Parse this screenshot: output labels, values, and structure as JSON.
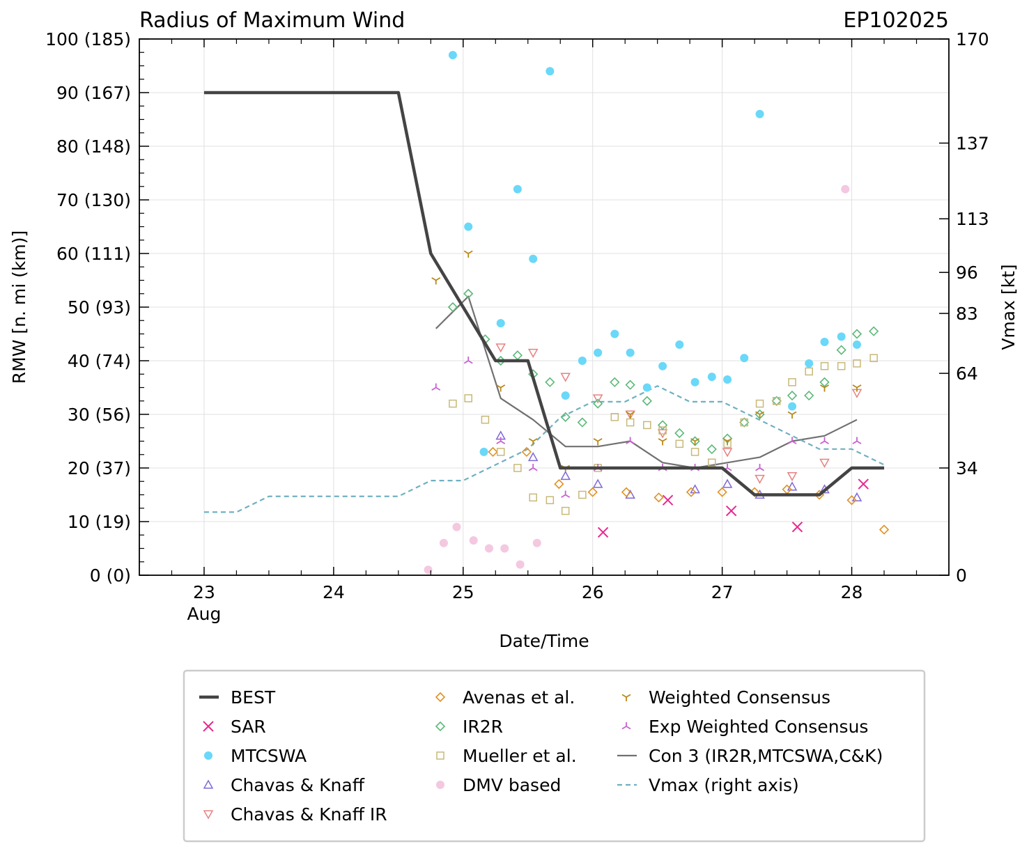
{
  "chart_data": {
    "type": "line",
    "title": "Radius of Maximum Wind",
    "storm_id": "EP102025",
    "xlabel": "Date/Time",
    "ylabel": "RMW [n. mi (km)]",
    "y2label": "Vmax [kt]",
    "xlim": [
      22.5,
      28.75
    ],
    "ylim": [
      0,
      100
    ],
    "x_ticks": [
      {
        "value": 23,
        "label": "23",
        "sublabel": "Aug"
      },
      {
        "value": 24,
        "label": "24",
        "sublabel": ""
      },
      {
        "value": 25,
        "label": "25",
        "sublabel": ""
      },
      {
        "value": 26,
        "label": "26",
        "sublabel": ""
      },
      {
        "value": 27,
        "label": "27",
        "sublabel": ""
      },
      {
        "value": 28,
        "label": "28",
        "sublabel": ""
      }
    ],
    "y_ticks": [
      {
        "value": 0,
        "label": "0 (0)"
      },
      {
        "value": 10,
        "label": "10 (19)"
      },
      {
        "value": 20,
        "label": "20 (37)"
      },
      {
        "value": 30,
        "label": "30 (56)"
      },
      {
        "value": 40,
        "label": "40 (74)"
      },
      {
        "value": 50,
        "label": "50 (93)"
      },
      {
        "value": 60,
        "label": "60 (111)"
      },
      {
        "value": 70,
        "label": "70 (130)"
      },
      {
        "value": 80,
        "label": "80 (148)"
      },
      {
        "value": 90,
        "label": "90 (167)"
      },
      {
        "value": 100,
        "label": "100 (185)"
      }
    ],
    "y2_ticks": [
      {
        "value": 0,
        "label": "0"
      },
      {
        "value": 34,
        "label": "34"
      },
      {
        "value": 64,
        "label": "64"
      },
      {
        "value": 83,
        "label": "83"
      },
      {
        "value": 96,
        "label": "96"
      },
      {
        "value": 113,
        "label": "113"
      },
      {
        "value": 137,
        "label": "137"
      },
      {
        "value": 170,
        "label": "170"
      }
    ],
    "y2lim": [
      0,
      170
    ],
    "grid": true,
    "legend_position": "below",
    "series": [
      {
        "name": "BEST",
        "kind": "line",
        "color": "#444444",
        "dash": "solid",
        "x": [
          23.0,
          24.5,
          24.75,
          25.0,
          25.25,
          25.5,
          25.75,
          26.0,
          26.25,
          26.5,
          26.75,
          27.0,
          27.25,
          27.5,
          27.75,
          28.0,
          28.25
        ],
        "y": [
          90,
          90,
          60,
          50,
          40,
          40,
          20,
          20,
          20,
          20,
          20,
          20,
          15,
          15,
          15,
          20,
          20
        ]
      },
      {
        "name": "SAR",
        "kind": "marker",
        "marker": "x",
        "color": "#e8288f",
        "x": [
          26.08,
          26.58,
          27.07,
          27.58,
          28.09
        ],
        "y": [
          8,
          14,
          12,
          9,
          17
        ]
      },
      {
        "name": "MTCSWA",
        "kind": "marker",
        "marker": "circle",
        "color": "#6ad8f8",
        "x": [
          24.92,
          25.04,
          25.16,
          25.29,
          25.42,
          25.54,
          25.67,
          25.79,
          25.92,
          26.04,
          26.17,
          26.29,
          26.42,
          26.54,
          26.67,
          26.79,
          26.92,
          27.04,
          27.17,
          27.29,
          27.54,
          27.67,
          27.79,
          27.92,
          28.04
        ],
        "y": [
          97,
          65,
          23,
          47,
          72,
          59,
          94,
          33.5,
          40,
          41.5,
          45,
          41.5,
          35,
          39,
          43,
          36,
          37,
          36.5,
          40.5,
          86,
          31.5,
          39.5,
          43.5,
          44.5,
          43
        ]
      },
      {
        "name": "Chavas & Knaff",
        "kind": "marker",
        "marker": "triangle-up",
        "color": "#7f68d8",
        "x": [
          25.29,
          25.54,
          25.79,
          26.04,
          26.29,
          26.79,
          27.04,
          27.29,
          27.54,
          27.79,
          28.04
        ],
        "y": [
          26,
          22,
          18.5,
          17,
          15,
          16,
          17,
          15,
          16.5,
          16,
          14.5
        ]
      },
      {
        "name": "Chavas & Knaff IR",
        "kind": "marker",
        "marker": "triangle-down",
        "color": "#e88080",
        "x": [
          25.29,
          25.54,
          25.79,
          26.04,
          26.29,
          26.54,
          27.04,
          27.29,
          27.54,
          27.79,
          28.04
        ],
        "y": [
          42.5,
          41.5,
          37,
          33,
          30,
          26.5,
          23,
          18,
          18.5,
          21,
          34
        ]
      },
      {
        "name": "Avenas et al.",
        "kind": "marker",
        "marker": "diamond",
        "color": "#e09020",
        "x": [
          25.23,
          25.49,
          25.74,
          26.0,
          26.26,
          26.51,
          26.76,
          27.0,
          27.25,
          27.5,
          27.75,
          28.0,
          28.25
        ],
        "y": [
          23,
          23,
          17,
          15.5,
          15.5,
          14.5,
          15.5,
          15.5,
          15.5,
          16,
          15,
          14,
          8.5
        ]
      },
      {
        "name": "IR2R",
        "kind": "marker",
        "marker": "diamond",
        "color": "#5cb878",
        "x": [
          24.92,
          25.04,
          25.17,
          25.29,
          25.42,
          25.54,
          25.67,
          25.79,
          25.92,
          26.04,
          26.17,
          26.29,
          26.42,
          26.54,
          26.67,
          26.79,
          26.92,
          27.04,
          27.17,
          27.29,
          27.42,
          27.54,
          27.67,
          27.79,
          27.92,
          28.04,
          28.17
        ],
        "y": [
          50,
          52.5,
          44,
          40,
          41,
          37.5,
          36,
          29.5,
          28.5,
          32,
          36,
          35.5,
          32.5,
          28,
          26.5,
          25,
          23.5,
          25.5,
          28.5,
          30,
          32.5,
          33.5,
          33.5,
          36,
          42,
          45,
          45.5
        ]
      },
      {
        "name": "Mueller et al.",
        "kind": "marker",
        "marker": "square",
        "color": "#c8b878",
        "x": [
          24.92,
          25.04,
          25.17,
          25.29,
          25.42,
          25.54,
          25.67,
          25.79,
          25.92,
          26.04,
          26.17,
          26.29,
          26.42,
          26.54,
          26.67,
          26.79,
          26.92,
          27.04,
          27.17,
          27.29,
          27.42,
          27.54,
          27.67,
          27.79,
          27.92,
          28.04,
          28.17
        ],
        "y": [
          32,
          33,
          29,
          23,
          20,
          14.5,
          14,
          12,
          15,
          20,
          29.5,
          28.5,
          28,
          27,
          24.5,
          23,
          21,
          24.5,
          28.5,
          32,
          32.5,
          36,
          38,
          39,
          39,
          39.5,
          40.5
        ]
      },
      {
        "name": "DMV based",
        "kind": "marker",
        "marker": "circle",
        "color": "#f4c8e0",
        "x": [
          24.73,
          24.85,
          24.95,
          25.08,
          25.2,
          25.32,
          25.44,
          25.57,
          27.95
        ],
        "y": [
          1,
          6,
          9,
          6.5,
          5,
          5,
          2,
          6,
          72
        ]
      },
      {
        "name": "Weighted Consensus",
        "kind": "marker",
        "marker": "tri-down",
        "color": "#b88818",
        "x": [
          24.79,
          25.04,
          25.29,
          25.54,
          25.79,
          26.04,
          26.29,
          26.54,
          26.79,
          27.04,
          27.29,
          27.54,
          27.79,
          28.04
        ],
        "y": [
          55,
          60,
          35,
          25,
          20,
          25,
          30,
          25,
          25,
          25,
          30,
          30,
          35,
          35
        ]
      },
      {
        "name": "Exp Weighted Consensus",
        "kind": "marker",
        "marker": "tri-up",
        "color": "#c860d0",
        "x": [
          24.79,
          25.04,
          25.29,
          25.54,
          25.79,
          26.04,
          26.29,
          26.54,
          26.79,
          27.04,
          27.29,
          27.54,
          27.79,
          28.04
        ],
        "y": [
          35,
          40,
          25,
          20,
          15,
          20,
          25,
          20,
          20,
          20,
          20,
          25,
          25,
          25
        ]
      },
      {
        "name": "Con 3 (IR2R,MTCSWA,C&K)",
        "kind": "line",
        "color": "#707070",
        "dash": "solid",
        "x": [
          24.79,
          25.04,
          25.29,
          25.54,
          25.79,
          26.04,
          26.29,
          26.54,
          26.79,
          27.04,
          27.29,
          27.54,
          27.79,
          28.04
        ],
        "y": [
          46,
          52,
          33,
          29,
          24,
          24,
          25,
          21,
          20,
          21,
          22,
          25,
          26,
          29
        ]
      },
      {
        "name": "Vmax (right axis)",
        "kind": "line",
        "axis": "right",
        "color": "#70b0c0",
        "dash": "dashed",
        "x": [
          23.0,
          23.25,
          23.5,
          24.0,
          24.5,
          24.75,
          25.0,
          25.25,
          25.5,
          25.75,
          26.0,
          26.25,
          26.5,
          26.75,
          27.0,
          27.25,
          27.5,
          27.75,
          28.0,
          28.25
        ],
        "y": [
          20,
          20,
          25,
          25,
          25,
          30,
          30,
          35,
          40,
          50,
          55,
          55,
          60,
          55,
          55,
          50,
          45,
          40,
          40,
          35
        ]
      }
    ]
  }
}
